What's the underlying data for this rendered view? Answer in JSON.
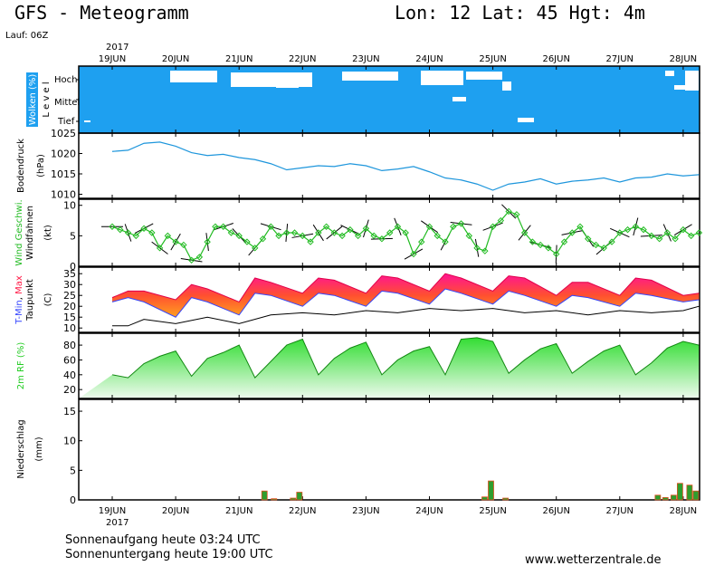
{
  "header": {
    "title": "GFS - Meteogramm",
    "location": "Lon: 12 Lat: 45 Hgt: 4m",
    "run": "Lauf: 06Z"
  },
  "year_label": "2017",
  "days": [
    "19JUN",
    "20JUN",
    "21JUN",
    "22JUN",
    "23JUN",
    "24JUN",
    "25JUN",
    "26JUN",
    "27JUN",
    "28JUN"
  ],
  "footer": {
    "sunrise": "Sonnenaufgang heute 03:24 UTC",
    "sunset": "Sonnenuntergang heute 19:00 UTC",
    "site": "www.wetterzentrale.de"
  },
  "colors": {
    "cloud": "#1ea0f0",
    "pressure": "#1e96dc",
    "wind": "#22bb22",
    "tmax": "#ff1744",
    "tmin": "#3344ff",
    "rh": "#22cc22",
    "precip_bar": "#2e9e2e",
    "precip_edge": "#e05020"
  },
  "chart_data": [
    {
      "type": "area",
      "title": "Wolken (%)",
      "ylabel": "Level",
      "level_labels": [
        "Hoch",
        "Mittel",
        "Tief"
      ],
      "note": "Cloud cover nearly 100% at all levels; gaps shown mainly in high level"
    },
    {
      "type": "line",
      "ylabel": "Bodendruck (hPa)",
      "ylim": [
        1009,
        1025
      ],
      "yticks": [
        1010,
        1015,
        1020,
        1025
      ],
      "x_days": [
        0,
        0.25,
        0.5,
        0.75,
        1,
        1.25,
        1.5,
        1.75,
        2,
        2.25,
        2.5,
        2.75,
        3,
        3.25,
        3.5,
        3.75,
        4,
        4.25,
        4.5,
        4.75,
        5,
        5.25,
        5.5,
        5.75,
        6,
        6.25,
        6.5,
        6.75,
        7,
        7.25,
        7.5,
        7.75,
        8,
        8.25,
        8.5,
        8.75,
        9,
        9.25
      ],
      "values": [
        1020.5,
        1020.8,
        1022.5,
        1022.8,
        1021.8,
        1020.2,
        1019.5,
        1019.8,
        1019.0,
        1018.5,
        1017.5,
        1016.0,
        1016.5,
        1017.0,
        1016.8,
        1017.5,
        1017.0,
        1015.8,
        1016.2,
        1016.8,
        1015.5,
        1014.0,
        1013.5,
        1012.5,
        1011.0,
        1012.5,
        1013.0,
        1013.8,
        1012.5,
        1013.2,
        1013.5,
        1014.0,
        1013.0,
        1014.0,
        1014.2,
        1015.0,
        1014.5,
        1014.8
      ]
    },
    {
      "type": "line",
      "ylabel": "Wind Geschwi. (kt)",
      "ylabel2": "Windfahnen",
      "ylim": [
        0,
        10
      ],
      "yticks": [
        0,
        5,
        10
      ],
      "x_days": [
        0,
        0.125,
        0.25,
        0.375,
        0.5,
        0.625,
        0.75,
        0.875,
        1,
        1.125,
        1.25,
        1.375,
        1.5,
        1.625,
        1.75,
        1.875,
        2,
        2.125,
        2.25,
        2.375,
        2.5,
        2.625,
        2.75,
        2.875,
        3,
        3.125,
        3.25,
        3.375,
        3.5,
        3.625,
        3.75,
        3.875,
        4,
        4.125,
        4.25,
        4.375,
        4.5,
        4.625,
        4.75,
        4.875,
        5,
        5.125,
        5.25,
        5.375,
        5.5,
        5.625,
        5.75,
        5.875,
        6,
        6.125,
        6.25,
        6.375,
        6.5,
        6.625,
        6.75,
        6.875,
        7,
        7.125,
        7.25,
        7.375,
        7.5,
        7.625,
        7.75,
        7.875,
        8,
        8.125,
        8.25,
        8.375,
        8.5,
        8.625,
        8.75,
        8.875,
        9,
        9.125,
        9.25
      ],
      "values": [
        6.5,
        6.0,
        5.5,
        5.0,
        6.2,
        5.5,
        3.0,
        5.0,
        4.0,
        3.5,
        1.0,
        1.5,
        4.0,
        6.5,
        6.5,
        5.5,
        5.0,
        4.0,
        3.0,
        4.5,
        6.5,
        5.0,
        5.5,
        5.5,
        5.0,
        4.0,
        5.5,
        6.5,
        5.5,
        5.0,
        6.0,
        5.0,
        6.2,
        5.0,
        4.5,
        5.5,
        6.5,
        5.5,
        2.0,
        4.0,
        6.5,
        5.0,
        4.0,
        6.5,
        7.0,
        5.0,
        3.0,
        2.5,
        6.5,
        7.5,
        9.0,
        8.5,
        5.5,
        4.0,
        3.5,
        3.0,
        2.0,
        4.0,
        5.5,
        6.5,
        4.5,
        3.5,
        3.0,
        4.0,
        5.5,
        6.0,
        6.5,
        6.0,
        5.0,
        4.5,
        5.5,
        4.5,
        6.0,
        5.0,
        5.5
      ]
    },
    {
      "type": "area",
      "ylabel": "T-Min, Max (C)",
      "ylabel2": "Taupunkt",
      "ylim": [
        8,
        38
      ],
      "yticks": [
        10,
        15,
        20,
        25,
        30,
        35
      ],
      "series": [
        {
          "name": "T-Max",
          "x_days": [
            0,
            0.25,
            0.5,
            1.0,
            1.25,
            1.5,
            2.0,
            2.25,
            2.5,
            3.0,
            3.25,
            3.5,
            4.0,
            4.25,
            4.5,
            5.0,
            5.25,
            5.5,
            6.0,
            6.25,
            6.5,
            7.0,
            7.25,
            7.5,
            8.0,
            8.25,
            8.5,
            9.0,
            9.25
          ],
          "values": [
            24,
            27,
            27,
            23,
            30,
            28,
            22,
            33,
            31,
            26,
            33,
            32,
            26,
            34,
            33,
            27,
            35,
            33,
            27,
            34,
            33,
            25,
            31,
            31,
            25,
            33,
            32,
            25,
            26
          ]
        },
        {
          "name": "T-Min",
          "x_days": [
            0,
            0.25,
            0.5,
            1.0,
            1.25,
            1.5,
            2.0,
            2.25,
            2.5,
            3.0,
            3.25,
            3.5,
            4.0,
            4.25,
            4.5,
            5.0,
            5.25,
            5.5,
            6.0,
            6.25,
            6.5,
            7.0,
            7.25,
            7.5,
            8.0,
            8.25,
            8.5,
            9.0,
            9.25
          ],
          "values": [
            22,
            24,
            22,
            15,
            24,
            22,
            16,
            26,
            25,
            20,
            26,
            25,
            20,
            27,
            26,
            21,
            28,
            26,
            21,
            27,
            25,
            20,
            25,
            24,
            20,
            26,
            25,
            22,
            23
          ]
        },
        {
          "name": "Taupunkt",
          "x_days": [
            0,
            0.25,
            0.5,
            1.0,
            1.5,
            2.0,
            2.5,
            3.0,
            3.5,
            4.0,
            4.5,
            5.0,
            5.5,
            6.0,
            6.5,
            7.0,
            7.5,
            8.0,
            8.5,
            9.0,
            9.25
          ],
          "values": [
            11,
            11,
            14,
            12,
            15,
            12,
            16,
            17,
            16,
            18,
            17,
            19,
            18,
            19,
            17,
            18,
            16,
            18,
            17,
            18,
            20
          ]
        }
      ]
    },
    {
      "type": "area",
      "ylabel": "2m RF (%)",
      "ylim": [
        8,
        96
      ],
      "yticks": [
        20,
        40,
        60,
        80
      ],
      "x_days": [
        0,
        0.25,
        0.5,
        0.75,
        1,
        1.25,
        1.5,
        1.75,
        2,
        2.25,
        2.5,
        2.75,
        3,
        3.25,
        3.5,
        3.75,
        4,
        4.25,
        4.5,
        4.75,
        5,
        5.25,
        5.5,
        5.75,
        6,
        6.25,
        6.5,
        6.75,
        7,
        7.25,
        7.5,
        7.75,
        8,
        8.25,
        8.5,
        8.75,
        9,
        9.25
      ],
      "values": [
        40,
        36,
        55,
        65,
        72,
        38,
        62,
        70,
        80,
        36,
        58,
        80,
        88,
        40,
        62,
        76,
        84,
        40,
        60,
        72,
        78,
        40,
        88,
        90,
        85,
        42,
        60,
        75,
        82,
        42,
        58,
        72,
        80,
        40,
        56,
        76,
        85,
        80
      ]
    },
    {
      "type": "bar",
      "ylabel": "Niederschlag (mm)",
      "ylim": [
        0,
        17
      ],
      "yticks": [
        0,
        5,
        10,
        15
      ],
      "x_days": [
        2.4,
        2.55,
        2.85,
        2.95,
        5.87,
        5.97,
        6.2,
        8.6,
        8.72,
        8.85,
        8.95,
        9.1,
        9.2
      ],
      "values": [
        1.5,
        0.2,
        0.3,
        1.3,
        0.5,
        3.2,
        0.3,
        0.8,
        0.4,
        0.8,
        2.8,
        2.5,
        1.5
      ]
    }
  ]
}
